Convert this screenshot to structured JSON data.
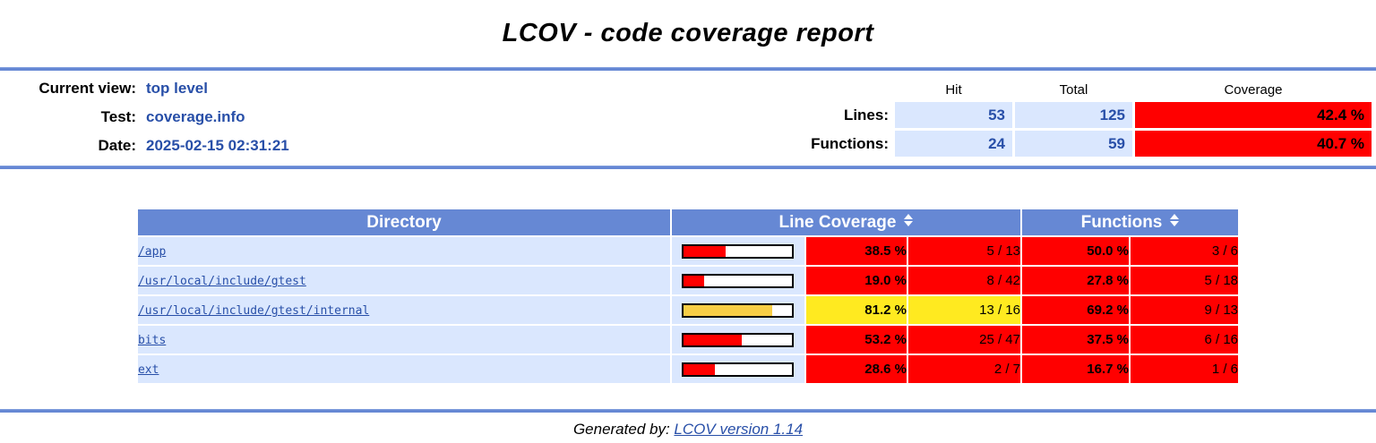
{
  "title": "LCOV - code coverage report",
  "header": {
    "fields": [
      {
        "label": "Current view:",
        "value": "top level"
      },
      {
        "label": "Test:",
        "value": "coverage.info"
      },
      {
        "label": "Date:",
        "value": "2025-02-15 02:31:21"
      }
    ],
    "stats": {
      "columns": [
        "Hit",
        "Total",
        "Coverage"
      ],
      "rows": [
        {
          "label": "Lines:",
          "hit": "53",
          "total": "125",
          "coverage": "42.4 %",
          "level": "low"
        },
        {
          "label": "Functions:",
          "hit": "24",
          "total": "59",
          "coverage": "40.7 %",
          "level": "low"
        }
      ]
    }
  },
  "table": {
    "headers": {
      "directory": "Directory",
      "line_coverage": "Line Coverage",
      "functions": "Functions"
    },
    "rows": [
      {
        "directory": "/app",
        "bar_percent": 38.5,
        "bar_level": "low",
        "line_percent": "38.5 %",
        "line_ratio": "5 / 13",
        "line_level": "low",
        "func_percent": "50.0 %",
        "func_ratio": "3 / 6",
        "func_level": "low"
      },
      {
        "directory": "/usr/local/include/gtest",
        "bar_percent": 19.0,
        "bar_level": "low",
        "line_percent": "19.0 %",
        "line_ratio": "8 / 42",
        "line_level": "low",
        "func_percent": "27.8 %",
        "func_ratio": "5 / 18",
        "func_level": "low"
      },
      {
        "directory": "/usr/local/include/gtest/internal",
        "bar_percent": 81.2,
        "bar_level": "med",
        "line_percent": "81.2 %",
        "line_ratio": "13 / 16",
        "line_level": "med",
        "func_percent": "69.2 %",
        "func_ratio": "9 / 13",
        "func_level": "low"
      },
      {
        "directory": "bits",
        "bar_percent": 53.2,
        "bar_level": "low",
        "line_percent": "53.2 %",
        "line_ratio": "25 / 47",
        "line_level": "low",
        "func_percent": "37.5 %",
        "func_ratio": "6 / 16",
        "func_level": "low"
      },
      {
        "directory": "ext",
        "bar_percent": 28.6,
        "bar_level": "low",
        "line_percent": "28.6 %",
        "line_ratio": "2 / 7",
        "line_level": "low",
        "func_percent": "16.7 %",
        "func_ratio": "1 / 6",
        "func_level": "low"
      }
    ]
  },
  "footer": {
    "generated_by": "Generated by:",
    "link_label": "LCOV version 1.14"
  },
  "colors": {
    "accent_blue": "#6688D4",
    "light_blue": "#DAE7FE",
    "link_blue": "#284FA8",
    "low_red": "#FF0000",
    "med_yellow": "#FFEA20",
    "bar_amber": "#F7CE46"
  }
}
